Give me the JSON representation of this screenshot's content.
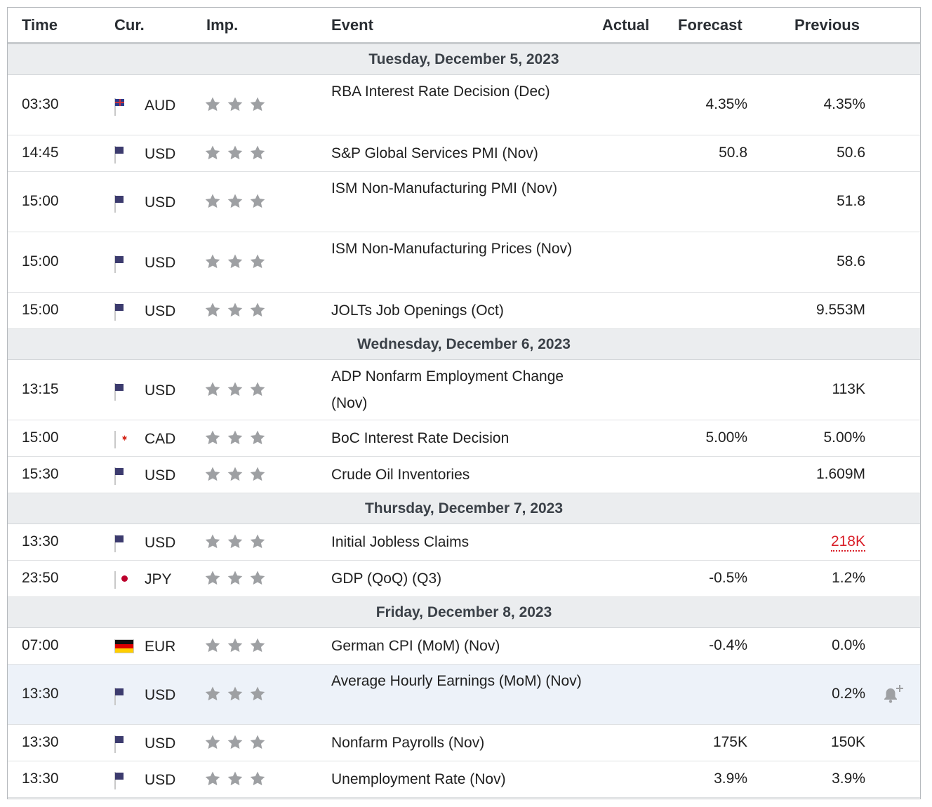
{
  "header": {
    "time": "Time",
    "cur": "Cur.",
    "imp": "Imp.",
    "event": "Event",
    "actual": "Actual",
    "forecast": "Forecast",
    "previous": "Previous"
  },
  "colors": {
    "star": "#9ea0a3",
    "negative": "#d9202a",
    "highlight": "#edf2f9"
  },
  "days": [
    {
      "label": "Tuesday, December 5, 2023",
      "events": [
        {
          "time": "03:30",
          "flag": "au",
          "currency": "AUD",
          "stars": 3,
          "event": "RBA Interest Rate Decision (Dec)",
          "actual": "",
          "forecast": "4.35%",
          "previous": "4.35%",
          "tall": true
        },
        {
          "time": "14:45",
          "flag": "us",
          "currency": "USD",
          "stars": 3,
          "event": "S&P Global Services PMI (Nov)",
          "actual": "",
          "forecast": "50.8",
          "previous": "50.6",
          "tall": false
        },
        {
          "time": "15:00",
          "flag": "us",
          "currency": "USD",
          "stars": 3,
          "event": "ISM Non-Manufacturing PMI (Nov)",
          "actual": "",
          "forecast": "",
          "previous": "51.8",
          "tall": true
        },
        {
          "time": "15:00",
          "flag": "us",
          "currency": "USD",
          "stars": 3,
          "event": "ISM Non-Manufacturing Prices (Nov)",
          "actual": "",
          "forecast": "",
          "previous": "58.6",
          "tall": true
        },
        {
          "time": "15:00",
          "flag": "us",
          "currency": "USD",
          "stars": 3,
          "event": "JOLTs Job Openings (Oct)",
          "actual": "",
          "forecast": "",
          "previous": "9.553M",
          "tall": false
        }
      ]
    },
    {
      "label": "Wednesday, December 6, 2023",
      "events": [
        {
          "time": "13:15",
          "flag": "us",
          "currency": "USD",
          "stars": 3,
          "event": "ADP Nonfarm Employment Change (Nov)",
          "actual": "",
          "forecast": "",
          "previous": "113K",
          "tall": true
        },
        {
          "time": "15:00",
          "flag": "ca",
          "currency": "CAD",
          "stars": 3,
          "event": "BoC Interest Rate Decision",
          "actual": "",
          "forecast": "5.00%",
          "previous": "5.00%",
          "tall": false
        },
        {
          "time": "15:30",
          "flag": "us",
          "currency": "USD",
          "stars": 3,
          "event": "Crude Oil Inventories",
          "actual": "",
          "forecast": "",
          "previous": "1.609M",
          "tall": false
        }
      ]
    },
    {
      "label": "Thursday, December 7, 2023",
      "events": [
        {
          "time": "13:30",
          "flag": "us",
          "currency": "USD",
          "stars": 3,
          "event": "Initial Jobless Claims",
          "actual": "",
          "forecast": "",
          "previous": "218K",
          "previous_revised": true,
          "tall": false
        },
        {
          "time": "23:50",
          "flag": "jp",
          "currency": "JPY",
          "stars": 3,
          "event": "GDP (QoQ) (Q3)",
          "actual": "",
          "forecast": "-0.5%",
          "previous": "1.2%",
          "tall": false
        }
      ]
    },
    {
      "label": "Friday, December 8, 2023",
      "events": [
        {
          "time": "07:00",
          "flag": "de",
          "currency": "EUR",
          "stars": 3,
          "event": "German CPI (MoM) (Nov)",
          "actual": "",
          "forecast": "-0.4%",
          "previous": "0.0%",
          "tall": false
        },
        {
          "time": "13:30",
          "flag": "us",
          "currency": "USD",
          "stars": 3,
          "event": "Average Hourly Earnings (MoM) (Nov)",
          "actual": "",
          "forecast": "",
          "previous": "0.2%",
          "tall": true,
          "hovered": true,
          "alert_icon": "bell-plus-icon"
        },
        {
          "time": "13:30",
          "flag": "us",
          "currency": "USD",
          "stars": 3,
          "event": "Nonfarm Payrolls (Nov)",
          "actual": "",
          "forecast": "175K",
          "previous": "150K",
          "tall": false
        },
        {
          "time": "13:30",
          "flag": "us",
          "currency": "USD",
          "stars": 3,
          "event": "Unemployment Rate (Nov)",
          "actual": "",
          "forecast": "3.9%",
          "previous": "3.9%",
          "tall": false
        }
      ]
    }
  ]
}
